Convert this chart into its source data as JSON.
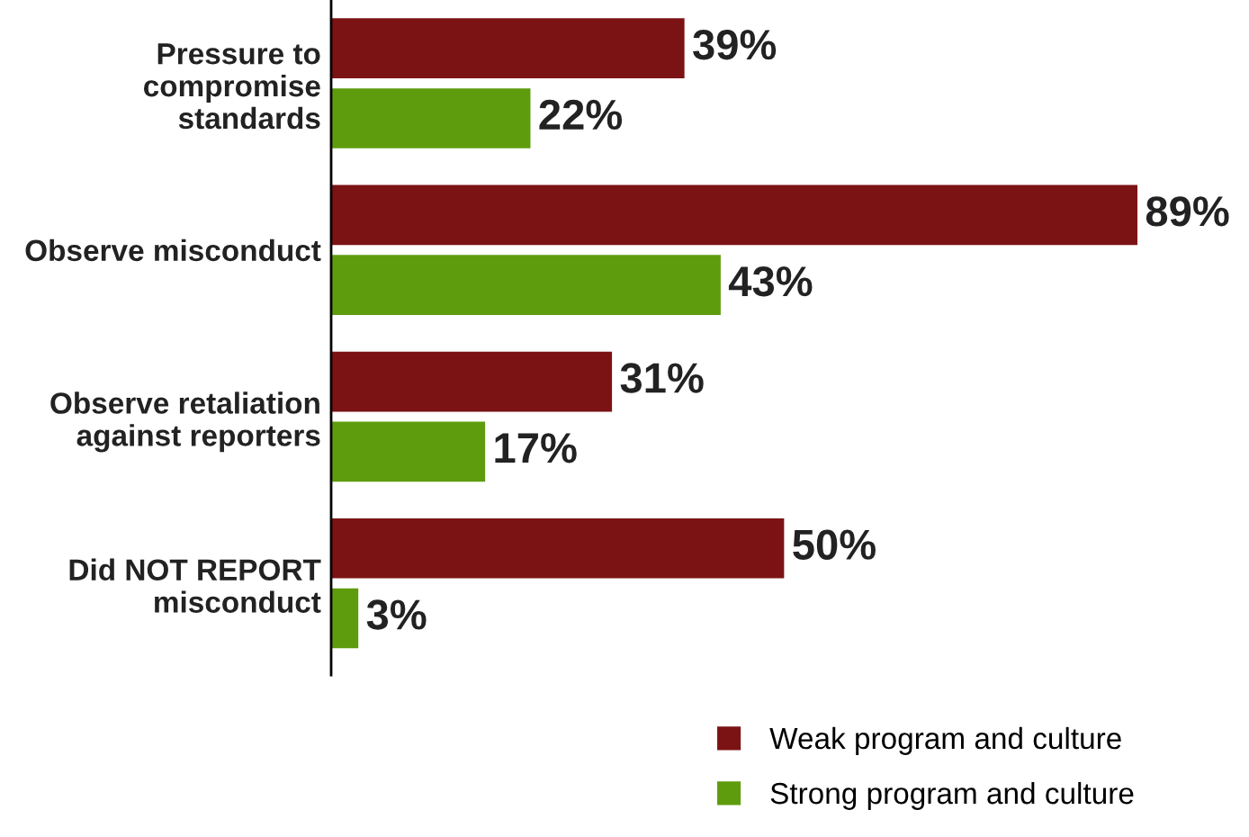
{
  "chart_data": {
    "type": "bar",
    "orientation": "horizontal",
    "categories": [
      "Pressure to\ncompromise\nstandards",
      "Observe misconduct",
      "Observe retaliation\nagainst reporters",
      "Did NOT REPORT\nmisconduct"
    ],
    "series": [
      {
        "name": "Weak program and culture",
        "color": "#7b1315",
        "values": [
          39,
          89,
          31,
          50
        ],
        "value_labels": [
          "39%",
          "89%",
          "31%",
          "50%"
        ]
      },
      {
        "name": "Strong program and culture",
        "color": "#5e9c0e",
        "values": [
          22,
          43,
          17,
          3
        ],
        "value_labels": [
          "22%",
          "43%",
          "17%",
          "3%"
        ]
      }
    ],
    "legend": "bottom right",
    "grid": false
  }
}
